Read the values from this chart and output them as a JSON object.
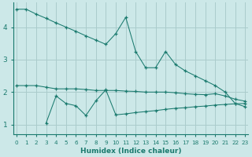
{
  "xlabel": "Humidex (Indice chaleur)",
  "bg_color": "#cce8e8",
  "grid_color": "#aacccc",
  "line_color": "#1a7a6e",
  "x": [
    0,
    1,
    2,
    3,
    4,
    5,
    6,
    7,
    8,
    9,
    10,
    11,
    12,
    13,
    14,
    15,
    16,
    17,
    18,
    19,
    20,
    21,
    22,
    23
  ],
  "line1": [
    4.55,
    4.55,
    4.4,
    4.27,
    4.13,
    4.0,
    3.87,
    3.73,
    3.6,
    3.47,
    3.8,
    4.3,
    3.25,
    2.75,
    2.75,
    3.25,
    2.85,
    2.65,
    2.5,
    2.35,
    2.2,
    2.0,
    1.65,
    1.55
  ],
  "line2": [
    2.2,
    2.2,
    2.2,
    2.15,
    2.1,
    2.1,
    2.1,
    2.08,
    2.05,
    2.05,
    2.05,
    2.03,
    2.02,
    2.0,
    2.0,
    2.0,
    1.98,
    1.95,
    1.93,
    1.92,
    1.95,
    1.88,
    1.78,
    1.72
  ],
  "line3": [
    null,
    null,
    null,
    1.05,
    1.88,
    1.65,
    1.58,
    1.28,
    1.73,
    2.07,
    1.3,
    1.33,
    1.37,
    1.4,
    1.43,
    1.47,
    1.5,
    1.52,
    1.55,
    1.57,
    1.6,
    1.62,
    1.64,
    1.65
  ],
  "line2_start": 0,
  "line3_start": 3,
  "ylim": [
    0.7,
    4.75
  ],
  "yticks": [
    1,
    2,
    3,
    4
  ],
  "xlim": [
    -0.3,
    23.3
  ]
}
